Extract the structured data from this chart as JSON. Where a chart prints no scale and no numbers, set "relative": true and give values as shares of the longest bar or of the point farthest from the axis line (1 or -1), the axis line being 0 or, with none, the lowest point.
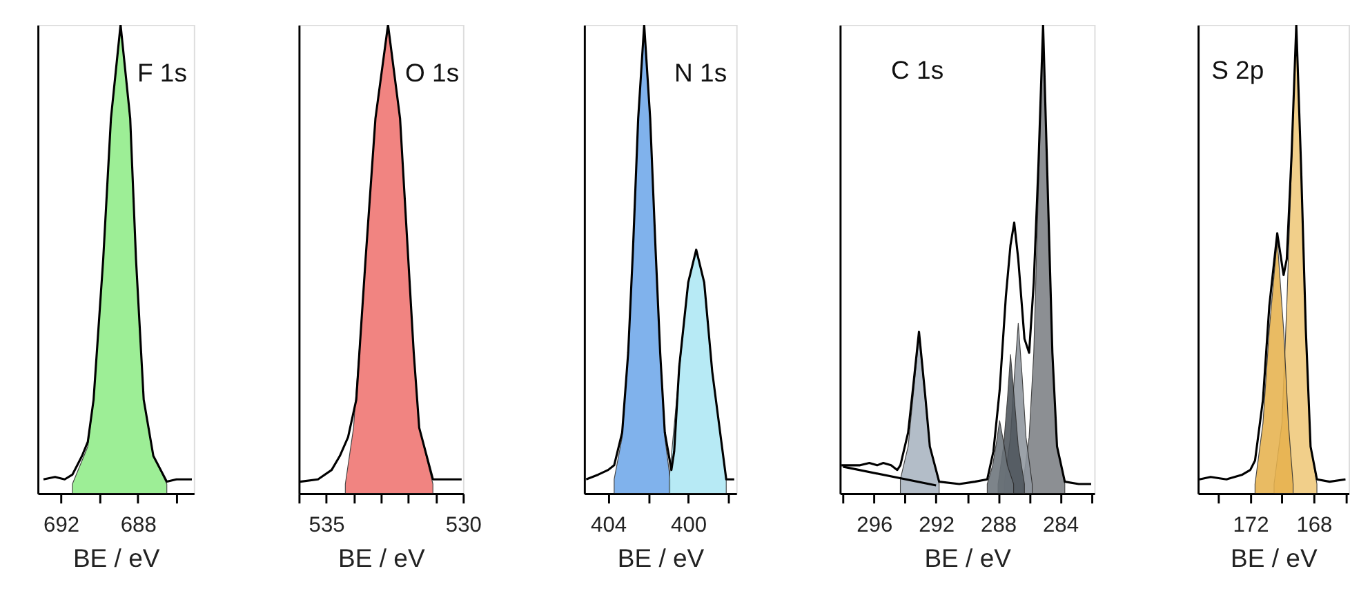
{
  "chart_data": [
    {
      "type": "area",
      "title": "F 1s",
      "xlabel": "BE / eV",
      "relative": true,
      "xlim": [
        693.2,
        685.1
      ],
      "xticks": [
        692,
        {
          "value": 690,
          "label": null
        },
        688,
        {
          "value": 686,
          "label": null
        }
      ],
      "series": [
        {
          "color": "#90ec88",
          "x": [
            691.4,
            690.6,
            690.3,
            689.8,
            689.4,
            688.9,
            688.4,
            688.1,
            687.7,
            687.2,
            686.5
          ],
          "values": [
            0.02,
            0.1,
            0.2,
            0.5,
            0.8,
            1.0,
            0.8,
            0.5,
            0.2,
            0.08,
            0.02
          ]
        },
        {
          "type": "line",
          "color": "#000000",
          "x": [
            692.9,
            692.3,
            691.8,
            691.4,
            690.9,
            690.6,
            690.3,
            689.8,
            689.4,
            688.9,
            688.4,
            688.1,
            687.7,
            687.2,
            686.5,
            686.0,
            685.2
          ],
          "values": [
            0.03,
            0.035,
            0.03,
            0.04,
            0.08,
            0.11,
            0.2,
            0.5,
            0.8,
            1.0,
            0.8,
            0.5,
            0.2,
            0.08,
            0.025,
            0.03,
            0.03
          ]
        }
      ]
    },
    {
      "type": "area",
      "title": "O 1s",
      "xlabel": "BE / eV",
      "relative": true,
      "xlim": [
        536,
        530
      ],
      "xticks": [
        {
          "value": 536,
          "label": null
        },
        535,
        {
          "value": 534,
          "label": null
        },
        {
          "value": 533,
          "label": null
        },
        {
          "value": 532,
          "label": null
        },
        {
          "value": 531,
          "label": null
        },
        530
      ],
      "series": [
        {
          "color": "#f07470",
          "x": [
            534.3,
            534.0,
            533.8,
            533.56,
            533.2,
            532.74,
            532.3,
            532.0,
            531.8,
            531.6,
            531.1
          ],
          "values": [
            0.02,
            0.14,
            0.3,
            0.5,
            0.8,
            1.0,
            0.8,
            0.5,
            0.3,
            0.14,
            0.02
          ]
        },
        {
          "type": "line",
          "color": "#000000",
          "x": [
            535.95,
            535.3,
            534.8,
            534.5,
            534.2,
            533.9,
            533.56,
            533.2,
            532.74,
            532.3,
            532.0,
            531.8,
            531.6,
            531.1,
            530.6,
            530.05
          ],
          "values": [
            0.025,
            0.03,
            0.05,
            0.08,
            0.12,
            0.2,
            0.5,
            0.8,
            1.0,
            0.8,
            0.5,
            0.3,
            0.14,
            0.03,
            0.03,
            0.03
          ]
        }
      ]
    },
    {
      "type": "area",
      "title": "N 1s",
      "xlabel": "BE / eV",
      "relative": true,
      "xlim": [
        405.2,
        397.6
      ],
      "xticks": [
        404,
        {
          "value": 402,
          "label": null
        },
        400,
        {
          "value": 398,
          "label": null
        }
      ],
      "series": [
        {
          "color": "#6fa8ea",
          "x": [
            403.7,
            403.3,
            403.0,
            402.76,
            402.5,
            402.2,
            401.9,
            401.63,
            401.4,
            401.17,
            400.9
          ],
          "values": [
            0.03,
            0.12,
            0.3,
            0.52,
            0.8,
            1.0,
            0.8,
            0.52,
            0.3,
            0.12,
            0.03
          ]
        },
        {
          "color": "#aee8f4",
          "x": [
            400.95,
            400.45,
            400.0,
            399.6,
            399.2,
            398.8,
            398.1
          ],
          "values": [
            0.03,
            0.26,
            0.45,
            0.52,
            0.45,
            0.26,
            0.03
          ]
        },
        {
          "type": "line",
          "color": "#000000",
          "x": [
            405.1,
            404.5,
            404.0,
            403.7,
            403.3,
            403.0,
            402.76,
            402.5,
            402.2,
            401.9,
            401.63,
            401.4,
            401.17,
            400.84,
            400.7,
            400.45,
            400.0,
            399.6,
            399.2,
            398.8,
            398.1,
            397.7
          ],
          "values": [
            0.03,
            0.04,
            0.05,
            0.06,
            0.13,
            0.3,
            0.52,
            0.8,
            1.0,
            0.8,
            0.52,
            0.3,
            0.13,
            0.05,
            0.09,
            0.27,
            0.45,
            0.52,
            0.45,
            0.26,
            0.03,
            0.03
          ]
        }
      ]
    },
    {
      "type": "area",
      "title": "C 1s",
      "xlabel": "BE / eV",
      "relative": true,
      "xlim": [
        298.2,
        281.8
      ],
      "xticks": [
        {
          "value": 298,
          "label": null
        },
        296,
        {
          "value": 294,
          "label": null
        },
        292,
        {
          "value": 290,
          "label": null
        },
        288,
        {
          "value": 286,
          "label": null
        },
        284,
        {
          "value": 282,
          "label": null
        }
      ],
      "series": [
        {
          "color": "#a9b4c1",
          "x": [
            294.3,
            293.8,
            293.5,
            293.1,
            292.7,
            292.4,
            291.8
          ],
          "values": [
            0.03,
            0.1,
            0.2,
            0.336,
            0.2,
            0.1,
            0.02
          ]
        },
        {
          "color": "#7d8085",
          "x": [
            286.4,
            286.0,
            285.7,
            285.4,
            285.1,
            284.8,
            284.5,
            284.2,
            283.7
          ],
          "values": [
            0.02,
            0.12,
            0.3,
            0.65,
            1.0,
            0.65,
            0.3,
            0.1,
            0.02
          ]
        },
        {
          "color": "#8f969e",
          "x": [
            287.6,
            287.2,
            286.95,
            286.7,
            286.45,
            286.2,
            285.8
          ],
          "values": [
            0.02,
            0.12,
            0.25,
            0.363,
            0.25,
            0.12,
            0.02
          ]
        },
        {
          "color": "#4d545b",
          "x": [
            288.0,
            287.65,
            287.4,
            287.2,
            286.95,
            286.7,
            286.3
          ],
          "values": [
            0.02,
            0.1,
            0.2,
            0.296,
            0.2,
            0.1,
            0.02
          ]
        },
        {
          "color": "#6c737a",
          "x": [
            288.7,
            288.35,
            288.1,
            287.9,
            287.65,
            287.4,
            287.0
          ],
          "values": [
            0.02,
            0.06,
            0.11,
            0.155,
            0.11,
            0.06,
            0.02
          ]
        },
        {
          "type": "line",
          "color": "#000000",
          "x": [
            298.0,
            292.0
          ],
          "values": [
            0.057,
            0.017
          ]
        },
        {
          "type": "line",
          "color": "#000000",
          "x": [
            298.1,
            297.5,
            296.9,
            296.3,
            295.8,
            295.4,
            294.9,
            294.5,
            294.3,
            293.8,
            293.5,
            293.1,
            292.7,
            292.4,
            291.8,
            290.5,
            289.5,
            288.7,
            288.3,
            287.9,
            287.5,
            287.2,
            286.96,
            286.7,
            286.3,
            286.0,
            285.7,
            285.4,
            285.1,
            284.8,
            284.5,
            284.2,
            283.7,
            282.8,
            282.0
          ],
          "values": [
            0.06,
            0.06,
            0.06,
            0.065,
            0.06,
            0.065,
            0.06,
            0.05,
            0.06,
            0.13,
            0.22,
            0.345,
            0.21,
            0.1,
            0.025,
            0.02,
            0.025,
            0.03,
            0.09,
            0.22,
            0.42,
            0.53,
            0.578,
            0.5,
            0.33,
            0.3,
            0.45,
            0.7,
            1.0,
            0.65,
            0.3,
            0.1,
            0.025,
            0.02,
            0.02
          ]
        }
      ]
    },
    {
      "type": "area",
      "title": "S 2p",
      "xlabel": "BE / eV",
      "relative": true,
      "xlim": [
        175.3,
        165.8
      ],
      "xticks": [
        {
          "value": 174,
          "label": null
        },
        172,
        {
          "value": 170,
          "label": null
        },
        168,
        {
          "value": 166,
          "label": null
        }
      ],
      "series": [
        {
          "color": "#f0c97a",
          "x": [
            170.5,
            170.0,
            169.7,
            169.4,
            169.1,
            168.8,
            168.5,
            168.2,
            167.8
          ],
          "values": [
            0.02,
            0.15,
            0.4,
            0.7,
            1.0,
            0.7,
            0.35,
            0.1,
            0.02
          ]
        },
        {
          "color": "#e6b24e",
          "x": [
            171.7,
            171.2,
            170.8,
            170.3,
            169.9,
            169.6,
            169.3
          ],
          "values": [
            0.02,
            0.15,
            0.35,
            0.542,
            0.35,
            0.15,
            0.02
          ]
        },
        {
          "type": "line",
          "color": "#000000",
          "x": [
            175.2,
            174.5,
            173.5,
            172.5,
            172.0,
            171.7,
            171.2,
            170.8,
            170.3,
            169.9,
            169.7,
            169.4,
            169.1,
            168.8,
            168.5,
            168.2,
            167.8,
            167.0,
            166.0
          ],
          "values": [
            0.03,
            0.035,
            0.03,
            0.04,
            0.05,
            0.07,
            0.2,
            0.4,
            0.555,
            0.466,
            0.5,
            0.72,
            1.0,
            0.7,
            0.35,
            0.1,
            0.03,
            0.025,
            0.03
          ]
        }
      ]
    }
  ]
}
